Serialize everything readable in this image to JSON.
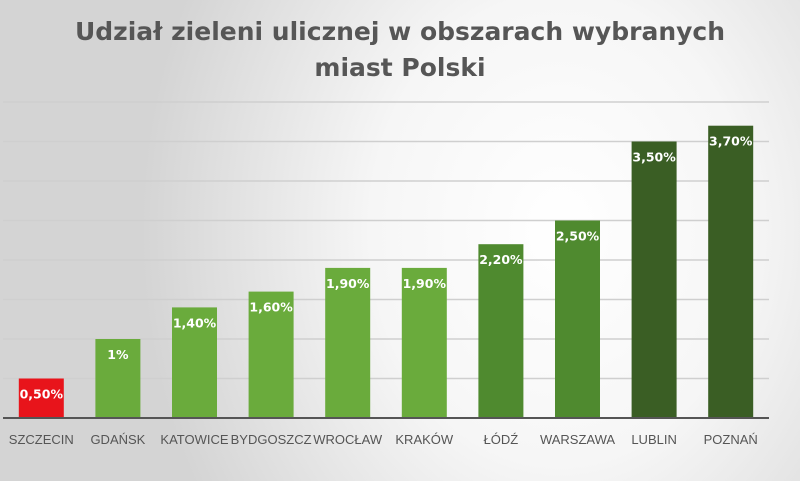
{
  "chart_data": {
    "type": "bar",
    "title_lines": [
      "Udział zieleni ulicznej w obszarach wybranych",
      "miast Polski"
    ],
    "categories": [
      "SZCZECIN",
      "GDAŃSK",
      "KATOWICE",
      "BYDGOSZCZ",
      "WROCŁAW",
      "KRAKÓW",
      "ŁÓDŹ",
      "WARSZAWA",
      "LUBLIN",
      "POZNAŃ"
    ],
    "values": [
      0.5,
      1.0,
      1.4,
      1.6,
      1.9,
      1.9,
      2.2,
      2.5,
      3.5,
      3.7
    ],
    "data_labels": [
      "0,50%",
      "1%",
      "1,40%",
      "1,60%",
      "1,90%",
      "1,90%",
      "2,20%",
      "2,50%",
      "3,50%",
      "3,70%"
    ],
    "colors": [
      "#e8141b",
      "#6aab3c",
      "#6aab3c",
      "#6aab3c",
      "#6aab3c",
      "#6aab3c",
      "#4f8a2f",
      "#4f8a2f",
      "#3a5e24",
      "#3a5e24"
    ],
    "xlabel": "",
    "ylabel": "",
    "ylim": [
      0,
      4.0
    ],
    "grid_step": 0.5,
    "grid": true,
    "legend": "none"
  }
}
